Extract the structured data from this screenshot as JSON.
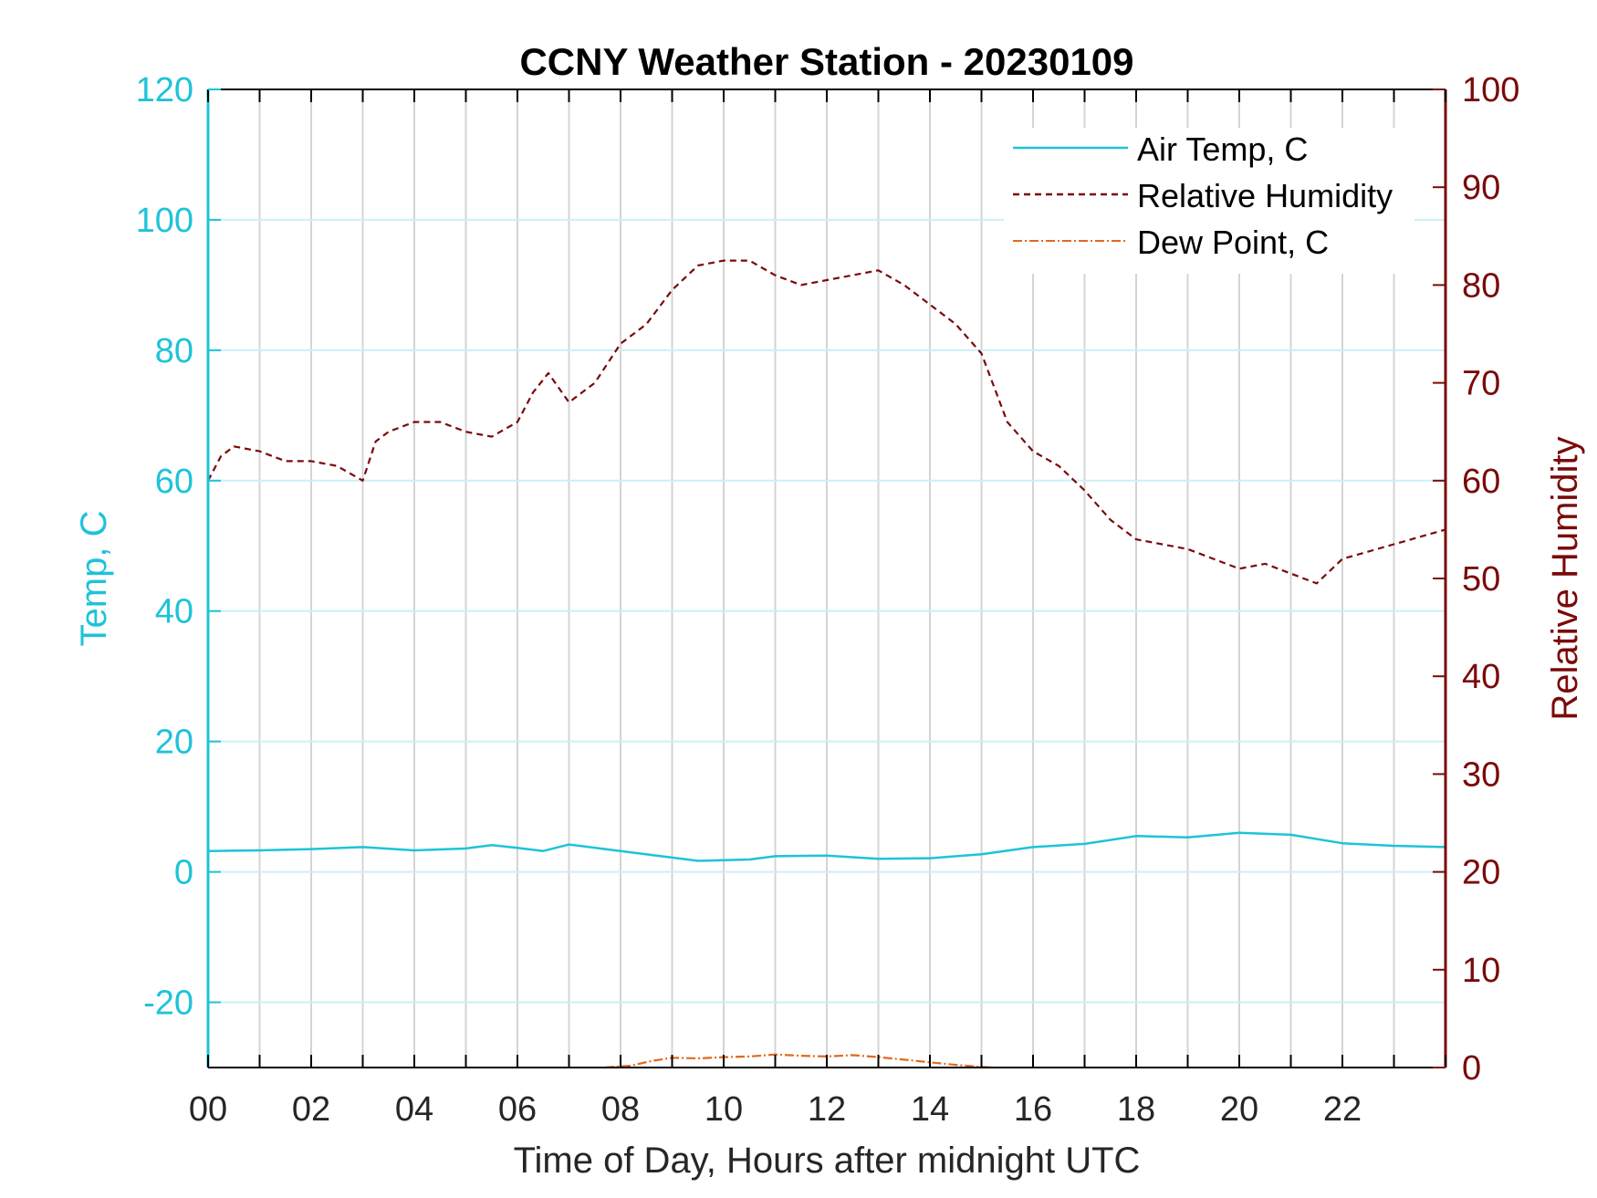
{
  "chart_data": {
    "type": "line",
    "title": "CCNY Weather Station - 20230109",
    "xlabel": "Time of Day, Hours after midnight UTC",
    "ylabel_left": "Temp, C",
    "ylabel_right": "Relative Humidity",
    "xlim": [
      0,
      24
    ],
    "ylim_left": [
      -30,
      120
    ],
    "ylim_right": [
      0,
      100
    ],
    "x_ticks": [
      0,
      2,
      4,
      6,
      8,
      10,
      12,
      14,
      16,
      18,
      20,
      22
    ],
    "x_tick_labels": [
      "00",
      "02",
      "04",
      "06",
      "08",
      "10",
      "12",
      "14",
      "16",
      "18",
      "20",
      "22"
    ],
    "y_ticks_left": [
      -20,
      0,
      20,
      40,
      60,
      80,
      100,
      120
    ],
    "y_tick_labels_left": [
      "-20",
      "0",
      "20",
      "40",
      "60",
      "80",
      "100",
      "120"
    ],
    "y_ticks_right": [
      0,
      10,
      20,
      30,
      40,
      50,
      60,
      70,
      80,
      90,
      100
    ],
    "y_tick_labels_right": [
      "0",
      "10",
      "20",
      "30",
      "40",
      "50",
      "60",
      "70",
      "80",
      "90",
      "100"
    ],
    "grid": true,
    "legend_position": "top-right",
    "colors": {
      "air_temp": "#1ec3d8",
      "humidity": "#7a0a0a",
      "dew_point": "#e06a1e",
      "grid_vertical": "#d4d4d4",
      "grid_horizontal": "#cdeff5",
      "axis": "#000000"
    },
    "series": [
      {
        "name": "Air Temp, C",
        "axis": "left",
        "style": "solid",
        "x": [
          0,
          1,
          2,
          3,
          4,
          5,
          5.5,
          6,
          6.5,
          7,
          8,
          9,
          9.5,
          10,
          10.5,
          11,
          12,
          13,
          14,
          15,
          16,
          17,
          18,
          19,
          20,
          21,
          22,
          23,
          24
        ],
        "values": [
          3.2,
          3.3,
          3.5,
          3.8,
          3.3,
          3.6,
          4.1,
          3.7,
          3.2,
          4.2,
          3.2,
          2.2,
          1.7,
          1.8,
          1.9,
          2.4,
          2.5,
          2.0,
          2.1,
          2.7,
          3.8,
          4.3,
          5.5,
          5.3,
          6.0,
          5.7,
          4.4,
          4.0,
          3.8
        ]
      },
      {
        "name": "Relative Humidity",
        "axis": "right",
        "style": "dashed",
        "x": [
          0,
          0.25,
          0.5,
          1,
          1.5,
          2,
          2.5,
          3,
          3.25,
          3.5,
          4,
          4.5,
          5,
          5.5,
          6,
          6.3,
          6.6,
          7,
          7.5,
          8,
          8.5,
          9,
          9.5,
          10,
          10.5,
          11,
          11.5,
          12,
          13,
          13.5,
          14,
          14.5,
          15,
          15.5,
          16,
          16.5,
          17,
          17.5,
          18,
          19,
          20,
          20.5,
          21,
          21.5,
          22,
          23,
          24
        ],
        "values": [
          60,
          62.5,
          63.5,
          63,
          62,
          62,
          61.5,
          60,
          64,
          65,
          66,
          66,
          65,
          64.5,
          66,
          69,
          71,
          68,
          70,
          74,
          76,
          79.5,
          82,
          82.5,
          82.5,
          81,
          80,
          80.5,
          81.5,
          80,
          78,
          76,
          73,
          66,
          63,
          61.5,
          59,
          56,
          54,
          53,
          51,
          51.5,
          50.5,
          49.5,
          52,
          53.5,
          55
        ]
      },
      {
        "name": "Dew Point, C",
        "axis": "left",
        "style": "dashdot",
        "x": [
          7.7,
          8.2,
          8.6,
          9,
          9.5,
          10,
          10.5,
          11,
          11.5,
          12,
          12.5,
          13,
          13.5,
          14,
          14.5,
          15,
          15.2
        ],
        "values": [
          -30,
          -29.7,
          -29.0,
          -28.5,
          -28.6,
          -28.4,
          -28.3,
          -28.0,
          -28.2,
          -28.3,
          -28.1,
          -28.4,
          -28.8,
          -29.2,
          -29.6,
          -29.9,
          -30
        ]
      }
    ]
  }
}
